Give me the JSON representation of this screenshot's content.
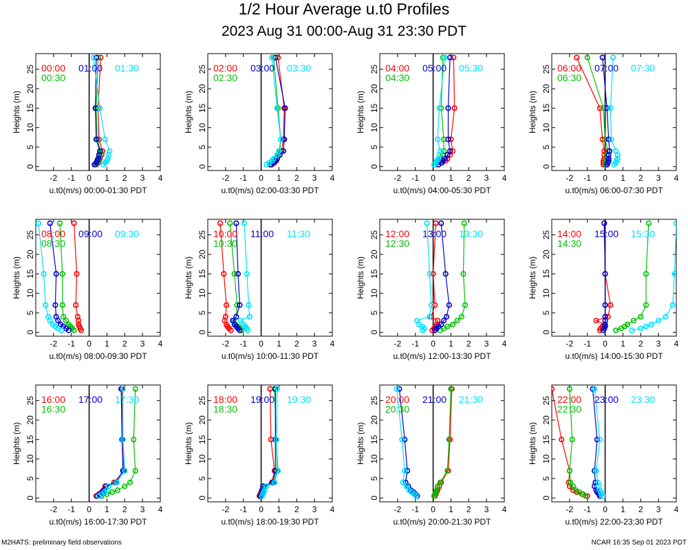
{
  "chart_data": {
    "type": "line",
    "title": "1/2 Hour Average u.t0 Profiles",
    "subtitle": "2023 Aug 31 00:00-Aug 31 23:30 PDT",
    "xlabel_prefix": "u.t0(m/s)",
    "ylabel": "Heights (m)",
    "xlim": [
      -3,
      4
    ],
    "ylim": [
      -1,
      29
    ],
    "xticks": [
      -2,
      -1,
      0,
      1,
      2,
      3,
      4
    ],
    "yticks": [
      0,
      5,
      10,
      15,
      20,
      25
    ],
    "heights": [
      0.5,
      1,
      1.5,
      2,
      3,
      4,
      7,
      15,
      28
    ],
    "colors": {
      "first": "#ff0000",
      "second": "#00c000",
      "third": "#0000cc",
      "fourth": "#00e0ff"
    },
    "panels": [
      {
        "range": "00:00-01:30 PDT",
        "labels": [
          "00:00",
          "00:30",
          "01:00",
          "01:30"
        ],
        "series": [
          {
            "time": "00:00",
            "values": [
              0.4,
              0.5,
              0.55,
              0.6,
              0.7,
              0.75,
              0.55,
              0.5,
              0.65
            ]
          },
          {
            "time": "00:30",
            "values": [
              0.35,
              0.45,
              0.5,
              0.55,
              0.6,
              0.65,
              0.45,
              0.4,
              0.5
            ]
          },
          {
            "time": "01:00",
            "values": [
              0.3,
              0.4,
              0.45,
              0.5,
              0.55,
              0.6,
              0.4,
              0.35,
              0.4
            ]
          },
          {
            "time": "01:30",
            "values": [
              0.8,
              0.9,
              1.0,
              1.05,
              1.1,
              1.15,
              0.9,
              0.6,
              0.25
            ]
          }
        ]
      },
      {
        "range": "02:00-03:30 PDT",
        "labels": [
          "02:00",
          "02:30",
          "03:00",
          "03:30"
        ],
        "series": [
          {
            "time": "02:00",
            "values": [
              0.6,
              0.75,
              0.85,
              0.9,
              1.05,
              1.15,
              1.25,
              1.3,
              0.95
            ]
          },
          {
            "time": "02:30",
            "values": [
              0.5,
              0.65,
              0.75,
              0.8,
              0.95,
              1.05,
              1.1,
              0.95,
              0.7
            ]
          },
          {
            "time": "03:00",
            "values": [
              0.55,
              0.7,
              0.8,
              0.9,
              1.05,
              1.25,
              1.3,
              1.35,
              0.8
            ]
          },
          {
            "time": "03:30",
            "values": [
              0.3,
              0.45,
              0.6,
              0.7,
              0.9,
              1.0,
              1.1,
              0.9,
              0.6
            ]
          }
        ]
      },
      {
        "range": "04:00-05:30 PDT",
        "labels": [
          "04:00",
          "04:30",
          "05:00",
          "05:30"
        ],
        "series": [
          {
            "time": "04:00",
            "values": [
              0.3,
              0.5,
              0.7,
              0.8,
              0.95,
              1.1,
              1.0,
              1.2,
              1.15
            ]
          },
          {
            "time": "04:30",
            "values": [
              0.1,
              0.2,
              0.3,
              0.4,
              0.55,
              0.6,
              0.6,
              0.45,
              0.55
            ]
          },
          {
            "time": "05:00",
            "values": [
              0.3,
              0.45,
              0.55,
              0.65,
              0.8,
              0.95,
              0.85,
              0.85,
              0.95
            ]
          },
          {
            "time": "05:30",
            "values": [
              0.05,
              0.15,
              0.2,
              0.3,
              0.35,
              0.4,
              0.25,
              0.35,
              0.65
            ]
          }
        ]
      },
      {
        "range": "06:00-07:30 PDT",
        "labels": [
          "06:00",
          "06:30",
          "07:00",
          "07:30"
        ],
        "series": [
          {
            "time": "06:00",
            "values": [
              -0.1,
              -0.1,
              -0.1,
              -0.05,
              -0.05,
              -0.05,
              -0.15,
              -0.3,
              -1.6
            ]
          },
          {
            "time": "06:30",
            "values": [
              0.0,
              0.05,
              0.05,
              0.1,
              0.1,
              0.15,
              0.0,
              -0.1,
              -1.0
            ]
          },
          {
            "time": "07:00",
            "values": [
              0.1,
              0.15,
              0.2,
              0.2,
              0.2,
              0.25,
              0.2,
              0.1,
              -0.15
            ]
          },
          {
            "time": "07:30",
            "values": [
              0.5,
              0.6,
              0.65,
              0.7,
              0.7,
              0.6,
              0.35,
              0.3,
              0.45
            ]
          }
        ]
      },
      {
        "range": "08:00-09:30 PDT",
        "labels": [
          "08:00",
          "08:30",
          "09:00",
          "09:30"
        ],
        "series": [
          {
            "time": "08:00",
            "values": [
              -0.45,
              -0.5,
              -0.55,
              -0.6,
              -0.6,
              -0.65,
              -0.75,
              -0.7,
              -0.85
            ]
          },
          {
            "time": "08:30",
            "values": [
              -0.85,
              -0.95,
              -1.05,
              -1.15,
              -1.3,
              -1.45,
              -1.5,
              -1.5,
              -1.65
            ]
          },
          {
            "time": "09:00",
            "values": [
              -1.15,
              -1.3,
              -1.45,
              -1.6,
              -1.75,
              -1.85,
              -1.9,
              -1.85,
              -2.2
            ]
          },
          {
            "time": "09:30",
            "values": [
              -1.55,
              -1.75,
              -1.9,
              -2.05,
              -2.2,
              -2.3,
              -2.45,
              -2.55,
              -2.85
            ]
          }
        ]
      },
      {
        "range": "10:00-11:30 PDT",
        "labels": [
          "10:00",
          "10:30",
          "11:00",
          "11:30"
        ],
        "series": [
          {
            "time": "10:00",
            "values": [
              -1.7,
              -1.8,
              -1.9,
              -1.95,
              -2.05,
              -2.0,
              -1.95,
              -2.1,
              -2.3
            ]
          },
          {
            "time": "10:30",
            "values": [
              -1.1,
              -1.2,
              -1.3,
              -1.45,
              -1.55,
              -1.4,
              -1.35,
              -1.5,
              -1.75
            ]
          },
          {
            "time": "11:00",
            "values": [
              -1.2,
              -1.3,
              -1.4,
              -1.5,
              -1.6,
              -1.4,
              -1.2,
              -1.3,
              -1.4
            ]
          },
          {
            "time": "11:30",
            "values": [
              -0.75,
              -0.8,
              -0.9,
              -1.0,
              -1.15,
              -0.65,
              -0.7,
              -0.8,
              -0.95
            ]
          }
        ]
      },
      {
        "range": "12:00-13:30 PDT",
        "labels": [
          "12:00",
          "12:30",
          "13:00",
          "13:30"
        ],
        "series": [
          {
            "time": "12:00",
            "values": [
              -0.05,
              0.05,
              0.15,
              0.2,
              0.25,
              -0.1,
              0.1,
              0.0,
              0.15
            ]
          },
          {
            "time": "12:30",
            "values": [
              0.4,
              0.6,
              0.8,
              1.1,
              1.35,
              1.6,
              1.8,
              1.7,
              1.75
            ]
          },
          {
            "time": "13:00",
            "values": [
              0.1,
              0.2,
              0.3,
              0.45,
              0.6,
              0.75,
              0.9,
              0.7,
              0.45
            ]
          },
          {
            "time": "13:30",
            "values": [
              -0.6,
              -0.5,
              -0.6,
              -0.8,
              -0.9,
              -0.2,
              -0.1,
              -0.2,
              -0.35
            ]
          }
        ]
      },
      {
        "range": "14:00-15:30 PDT",
        "labels": [
          "14:00",
          "14:30",
          "15:00",
          "15:30"
        ],
        "series": [
          {
            "time": "14:00",
            "values": [
              -0.3,
              -0.25,
              -0.15,
              -0.05,
              -0.5,
              0.15,
              0.3,
              0.0,
              -0.05
            ]
          },
          {
            "time": "14:30",
            "values": [
              0.6,
              0.9,
              1.1,
              1.25,
              1.6,
              2.0,
              2.3,
              2.3,
              2.45
            ]
          },
          {
            "time": "15:00",
            "values": [
              -0.1,
              -0.05,
              0.0,
              0.0,
              0.0,
              0.0,
              0.0,
              0.0,
              -0.05
            ]
          },
          {
            "time": "15:30",
            "values": [
              1.5,
              2.0,
              2.3,
              2.6,
              3.0,
              3.4,
              3.8,
              3.9,
              4.0
            ]
          }
        ]
      },
      {
        "range": "16:00-17:30 PDT",
        "labels": [
          "16:00",
          "16:30",
          "17:00",
          "17:30"
        ],
        "series": [
          {
            "time": "16:00",
            "values": [
              0.4,
              0.55,
              0.7,
              0.8,
              0.9,
              1.4,
              1.95,
              1.9,
              1.85
            ]
          },
          {
            "time": "16:30",
            "values": [
              0.7,
              1.0,
              1.3,
              1.6,
              2.0,
              2.3,
              2.6,
              2.5,
              2.6
            ]
          },
          {
            "time": "17:00",
            "values": [
              0.45,
              0.6,
              0.75,
              0.85,
              0.95,
              1.5,
              1.9,
              1.85,
              1.8
            ]
          },
          {
            "time": "17:30",
            "values": [
              0.55,
              0.7,
              0.85,
              1.0,
              1.1,
              1.55,
              2.0,
              1.9,
              1.9
            ]
          }
        ]
      },
      {
        "range": "18:00-19:30 PDT",
        "labels": [
          "18:00",
          "18:30",
          "19:00",
          "19:30"
        ],
        "series": [
          {
            "time": "18:00",
            "values": [
              -0.1,
              -0.05,
              0.0,
              0.05,
              0.1,
              0.6,
              0.75,
              0.55,
              0.5
            ]
          },
          {
            "time": "18:30",
            "values": [
              0.0,
              0.05,
              0.1,
              0.1,
              0.2,
              0.7,
              0.9,
              0.85,
              0.75
            ]
          },
          {
            "time": "19:00",
            "values": [
              -0.05,
              0.0,
              0.05,
              0.05,
              0.1,
              0.65,
              0.8,
              0.8,
              0.8
            ]
          },
          {
            "time": "19:30",
            "values": [
              0.05,
              0.1,
              0.15,
              0.2,
              0.3,
              0.75,
              0.95,
              0.85,
              0.9
            ]
          }
        ]
      },
      {
        "range": "20:00-21:30 PDT",
        "labels": [
          "20:00",
          "20:30",
          "21:00",
          "21:30"
        ],
        "series": [
          {
            "time": "20:00",
            "values": [
              0.1,
              0.15,
              0.2,
              0.25,
              0.35,
              0.45,
              0.85,
              0.95,
              1.05
            ]
          },
          {
            "time": "20:30",
            "values": [
              0.05,
              0.1,
              0.15,
              0.2,
              0.25,
              0.4,
              0.8,
              0.9,
              1.0
            ]
          },
          {
            "time": "21:00",
            "values": [
              -0.9,
              -1.0,
              -1.1,
              -1.25,
              -1.4,
              -1.55,
              -1.45,
              -1.6,
              -1.9
            ]
          },
          {
            "time": "21:30",
            "values": [
              -0.95,
              -1.05,
              -1.2,
              -1.35,
              -1.5,
              -1.7,
              -1.6,
              -1.75,
              -2.05
            ]
          }
        ]
      },
      {
        "range": "22:00-23:30 PDT",
        "labels": [
          "22:00",
          "22:30",
          "23:00",
          "23:30"
        ],
        "series": [
          {
            "time": "22:00",
            "values": [
              -1.0,
              -1.3,
              -1.6,
              -1.8,
              -2.0,
              -2.05,
              -2.0,
              -2.45,
              -3.0
            ]
          },
          {
            "time": "22:30",
            "values": [
              -1.1,
              -1.25,
              -1.45,
              -1.65,
              -1.8,
              -1.95,
              -2.0,
              -1.85,
              -2.0
            ]
          },
          {
            "time": "23:00",
            "values": [
              -0.3,
              -0.35,
              -0.45,
              -0.5,
              -0.6,
              -0.55,
              -0.6,
              -0.45,
              -0.7
            ]
          },
          {
            "time": "23:30",
            "values": [
              -0.1,
              -0.2,
              -0.25,
              -0.3,
              -0.35,
              -0.4,
              -0.5,
              -0.3,
              -0.6
            ]
          }
        ]
      }
    ]
  },
  "footer": {
    "left": "M2HATS: preliminary field observations",
    "right": "NCAR 16:35 Sep 01 2023 PDT"
  }
}
